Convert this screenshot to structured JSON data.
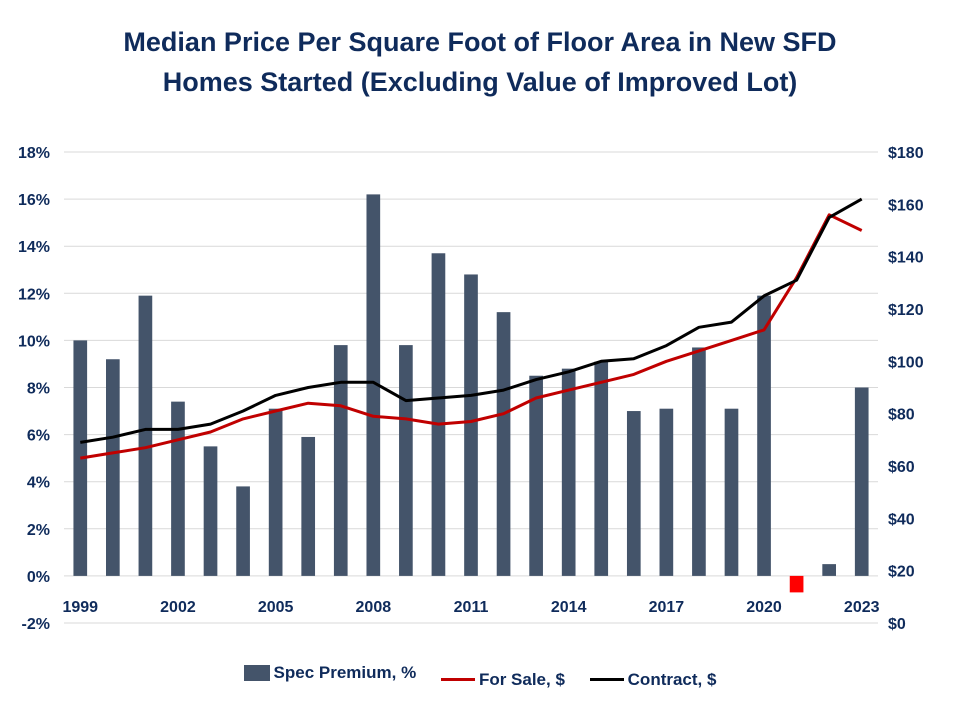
{
  "title_lines": [
    "Median Price Per Square Foot of Floor Area in New SFD",
    "Homes Started (Excluding Value of Improved Lot)"
  ],
  "legend": {
    "bars": "Spec Premium, %",
    "for_sale": "For Sale, $",
    "contract": "Contract, $"
  },
  "colors": {
    "title": "#0f2b5b",
    "bars": "#44546a",
    "negative_bar": "#ff0000",
    "for_sale": "#c00000",
    "contract": "#000000",
    "grid": "#d9d9d9"
  },
  "chart_data": {
    "type": "bar",
    "title": "Median Price Per Square Foot of Floor Area in New SFD Homes Started (Excluding Value of Improved Lot)",
    "x": [
      1999,
      2000,
      2001,
      2002,
      2003,
      2004,
      2005,
      2006,
      2007,
      2008,
      2009,
      2010,
      2011,
      2012,
      2013,
      2014,
      2015,
      2016,
      2017,
      2018,
      2019,
      2020,
      2021,
      2022,
      2023
    ],
    "x_tick_labels": [
      "1999",
      "2002",
      "2005",
      "2008",
      "2011",
      "2014",
      "2017",
      "2020",
      "2023"
    ],
    "left_axis": {
      "ylim": [
        -2,
        18
      ],
      "ticks": [
        "-2%",
        "0%",
        "2%",
        "4%",
        "6%",
        "8%",
        "10%",
        "12%",
        "14%",
        "16%",
        "18%"
      ]
    },
    "right_axis": {
      "ylim": [
        0,
        180
      ],
      "ticks": [
        "$0",
        "$20",
        "$40",
        "$60",
        "$80",
        "$100",
        "$120",
        "$140",
        "$160",
        "$180"
      ]
    },
    "grid": true,
    "legend_position": "bottom",
    "series": [
      {
        "name": "Spec Premium, %",
        "type": "bar",
        "axis": "left",
        "values": [
          10.0,
          9.2,
          11.9,
          7.4,
          5.5,
          3.8,
          7.1,
          5.9,
          9.8,
          16.2,
          9.8,
          13.7,
          12.8,
          11.2,
          8.5,
          8.8,
          9.1,
          7.0,
          7.1,
          9.7,
          7.1,
          11.9,
          -0.7,
          0.5,
          8.0
        ]
      },
      {
        "name": "For Sale, $",
        "type": "line",
        "axis": "right",
        "values": [
          63,
          65,
          67,
          70,
          73,
          78,
          81,
          84,
          83,
          79,
          78,
          76,
          77,
          80,
          86,
          89,
          92,
          95,
          100,
          104,
          108,
          112,
          132,
          156,
          150
        ]
      },
      {
        "name": "Contract, $",
        "type": "line",
        "axis": "right",
        "values": [
          69,
          71,
          74,
          74,
          76,
          81,
          87,
          90,
          92,
          92,
          85,
          86,
          87,
          89,
          93,
          96,
          100,
          101,
          106,
          113,
          115,
          125,
          131,
          155,
          162
        ]
      }
    ]
  }
}
